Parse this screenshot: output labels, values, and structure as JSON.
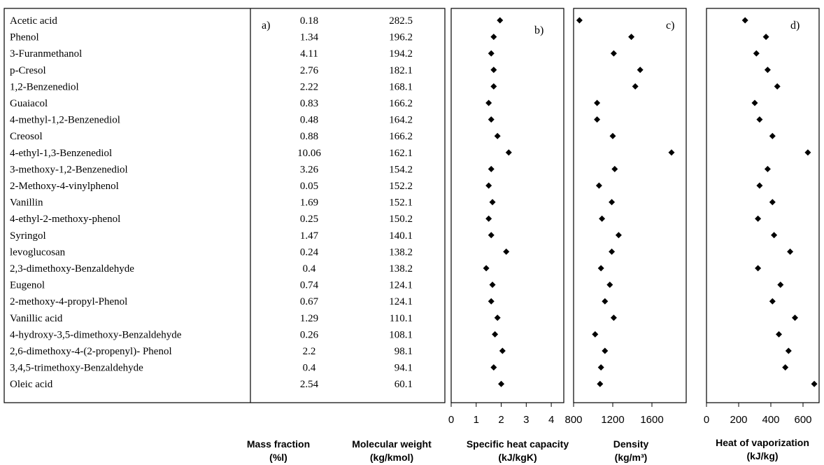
{
  "chart_data": {
    "type": "table",
    "table": {
      "label": "a)",
      "compounds": [
        "Acetic acid",
        "Phenol",
        "3-Furanmethanol",
        "p-Cresol",
        "1,2-Benzenediol",
        "Guaiacol",
        "4-methyl-1,2-Benzenediol",
        "Creosol",
        " 4-ethyl-1,3-Benzenediol",
        "3-methoxy-1,2-Benzenediol",
        "2-Methoxy-4-vinylphenol",
        "Vanillin",
        "4-ethyl-2-methoxy-phenol",
        "Syringol",
        "levoglucosan",
        "2,3-dimethoxy-Benzaldehyde",
        "Eugenol",
        "2-methoxy-4-propyl-Phenol",
        "Vanillic acid",
        "4-hydroxy-3,5-dimethoxy-Benzaldehyde",
        "2,6-dimethoxy-4-(2-propenyl)- Phenol",
        "3,4,5-trimethoxy-Benzaldehyde",
        "Oleic acid"
      ],
      "mass_fraction": [
        "0.18",
        "1.34",
        "4.11",
        "2.76",
        "2.22",
        "0.83",
        "0.48",
        "0.88",
        "10.06",
        "3.26",
        "0.05",
        "1.69",
        "0.25",
        "1.47",
        "0.24",
        "0.4",
        "0.74",
        "0.67",
        "1.29",
        "0.26",
        "2.2",
        "0.4",
        "2.54"
      ],
      "molecular_weight": [
        "282.5",
        "196.2",
        "194.2",
        "182.1",
        "168.1",
        "166.2",
        "164.2",
        "166.2",
        "162.1",
        "154.2",
        "152.2",
        "152.1",
        "150.2",
        "140.1",
        "138.2",
        "138.2",
        "124.1",
        "124.1",
        "110.1",
        "108.1",
        "98.1",
        "94.1",
        "60.1"
      ],
      "col_labels": [
        "Mass fraction (%l)",
        "Molecular weight (kg/kmol)"
      ]
    },
    "panels": [
      {
        "label": "b)",
        "type": "scatter",
        "xlabel": "Specific heat capacity (kJ/kgK)",
        "xlim": [
          0,
          4.5
        ],
        "xticks": [
          0,
          1,
          2,
          3,
          4
        ],
        "values": [
          1.95,
          1.7,
          1.6,
          1.7,
          1.7,
          1.5,
          1.6,
          1.85,
          2.3,
          1.6,
          1.5,
          1.65,
          1.5,
          1.6,
          2.2,
          1.4,
          1.65,
          1.6,
          1.85,
          1.75,
          2.05,
          1.7,
          2.0
        ]
      },
      {
        "label": "c)",
        "type": "scatter",
        "xlabel": "Density (kg/m³)",
        "xlim": [
          800,
          1950
        ],
        "xticks": [
          800,
          1200,
          1600
        ],
        "values": [
          860,
          1390,
          1210,
          1480,
          1430,
          1040,
          1040,
          1200,
          1800,
          1220,
          1060,
          1190,
          1090,
          1260,
          1190,
          1080,
          1170,
          1120,
          1210,
          1020,
          1120,
          1080,
          1070
        ]
      },
      {
        "label": "d)",
        "type": "scatter",
        "xlabel": "Heat of vaporization (kJ/kg)",
        "xlim": [
          0,
          700
        ],
        "xticks": [
          0,
          200,
          400,
          600
        ],
        "values": [
          240,
          370,
          310,
          380,
          440,
          300,
          330,
          410,
          630,
          380,
          330,
          410,
          320,
          420,
          520,
          320,
          460,
          410,
          550,
          450,
          510,
          490,
          670
        ]
      }
    ]
  }
}
